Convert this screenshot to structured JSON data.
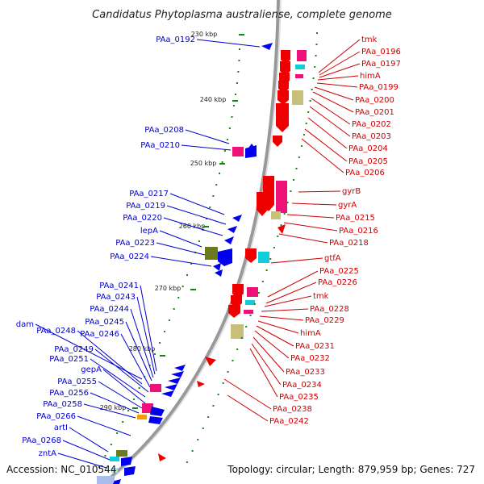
{
  "title": "Candidatus Phytoplasma australiense, complete genome",
  "footer": {
    "accession": "Accession: NC_010544",
    "topology": "Topology: circular; Length: 879,959 bp; Genes: 727"
  },
  "colors": {
    "backbone": "#888888",
    "forward_label": "#cc0000",
    "reverse_label": "#0000cc",
    "tick": "#118811",
    "gene_red": "#ee0000",
    "gene_blue": "#0000ee",
    "gene_magenta": "#ee1177",
    "gene_cyan": "#11ccdd",
    "gene_khaki": "#c8bf7a",
    "gene_olive": "#6b7a1e",
    "gene_orange": "#ff9900"
  },
  "ticks": [
    "230 kbp",
    "240 kbp",
    "250 kbp",
    "260 kbp",
    "270 kbp",
    "280 kbp",
    "290 kbp"
  ],
  "forward_labels": [
    "tmk",
    "PAa_0196",
    "PAa_0197",
    "himA",
    "PAa_0199",
    "PAa_0200",
    "PAa_0201",
    "PAa_0202",
    "PAa_0203",
    "PAa_0204",
    "PAa_0205",
    "PAa_0206",
    "gyrB",
    "gyrA",
    "PAa_0215",
    "PAa_0216",
    "PAa_0218",
    "gtfA",
    "PAa_0225",
    "PAa_0226",
    "tmk",
    "PAa_0228",
    "PAa_0229",
    "himA",
    "PAa_0231",
    "PAa_0232",
    "PAa_0233",
    "PAa_0234",
    "PAa_0235",
    "PAa_0238",
    "PAa_0242"
  ],
  "reverse_labels": [
    "PAa_0192",
    "PAa_0208",
    "PAa_0210",
    "PAa_0217",
    "PAa_0219",
    "PAa_0220",
    "lepA",
    "PAa_0223",
    "PAa_0224",
    "PAa_0241",
    "PAa_0243",
    "PAa_0244",
    "PAa_0245",
    "dam",
    "PAa_0248",
    "PAa_0246",
    "PAa_0249",
    "PAa_0251",
    "gepA",
    "PAa_0255",
    "PAa_0256",
    "PAa_0258",
    "PAa_0266",
    "artI",
    "PAa_0268",
    "zntA"
  ]
}
